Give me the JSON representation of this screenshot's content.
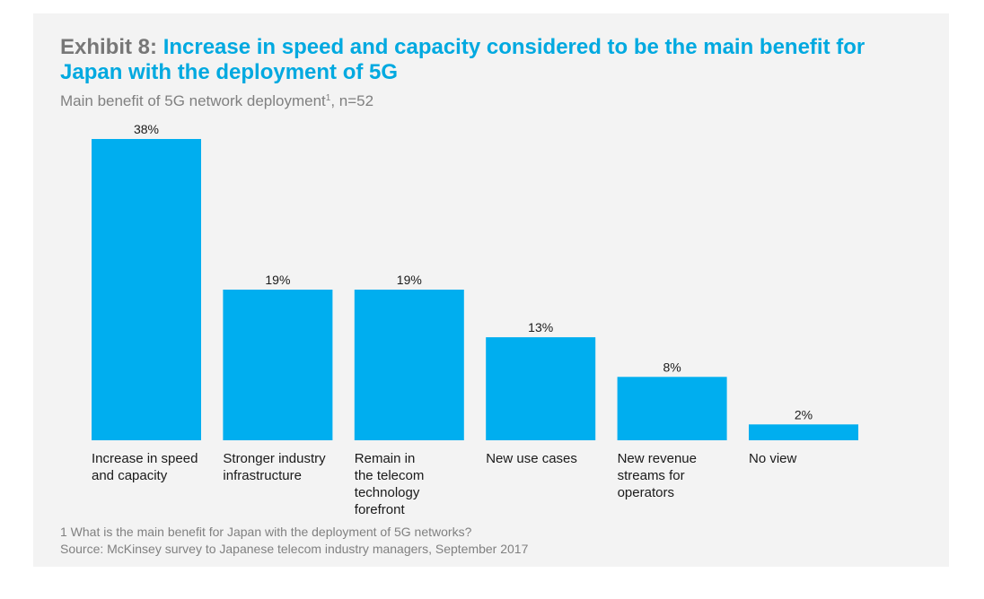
{
  "header": {
    "exhibit_label": "Exhibit 8:",
    "title": "Increase in speed and capacity considered to be the main benefit for Japan with the deployment of 5G",
    "subtitle_text": "Main benefit of 5G network deployment",
    "subtitle_footnote_mark": "1",
    "subtitle_sample": ", n=52"
  },
  "chart_data": {
    "type": "bar",
    "categories": [
      "Increase in speed and capacity",
      "Stronger industry infrastructure",
      "Remain in the telecom technology forefront",
      "New use cases",
      "New revenue streams for operators",
      "No view"
    ],
    "category_lines": [
      "Increase in speed\nand capacity",
      "Stronger industry\ninfrastructure",
      "Remain in\nthe telecom\ntechnology\nforefront",
      "New use cases",
      "New revenue\nstreams for\noperators",
      "No view"
    ],
    "values": [
      38,
      19,
      19,
      13,
      8,
      2
    ],
    "data_labels": [
      "38%",
      "19%",
      "19%",
      "13%",
      "8%",
      "2%"
    ],
    "unit": "%",
    "title": "Increase in speed and capacity considered to be the main benefit for Japan with the deployment of 5G",
    "subtitle": "Main benefit of 5G network deployment, n=52",
    "xlabel": "",
    "ylabel": "",
    "ylim": [
      0,
      38
    ],
    "grid": false,
    "legend": "none",
    "bar_color": "#00aeef"
  },
  "footer": {
    "footnote": "1 What is the main benefit for Japan with the deployment of 5G networks?",
    "source": "Source: McKinsey survey to Japanese telecom industry managers, September 2017"
  }
}
